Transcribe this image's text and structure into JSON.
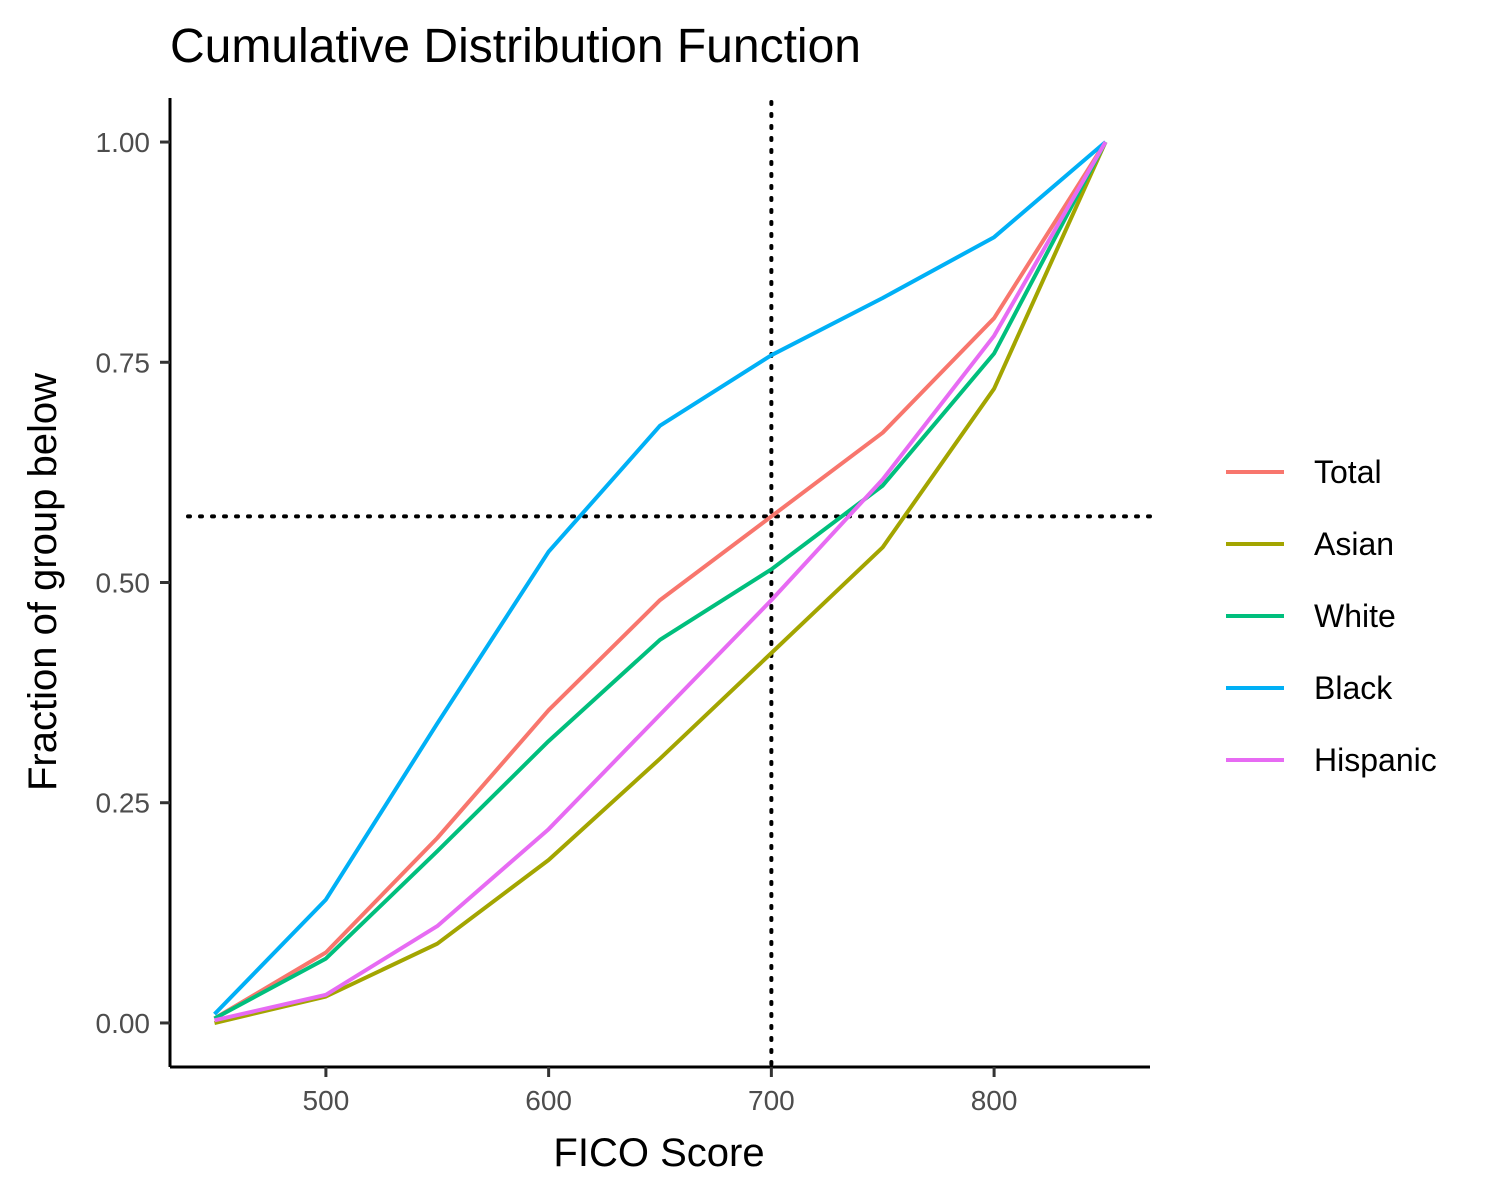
{
  "chart_data": {
    "type": "line",
    "title": "Cumulative Distribution Function",
    "xlabel": "FICO Score",
    "ylabel": "Fraction of group below",
    "x": [
      450,
      500,
      550,
      600,
      650,
      700,
      750,
      800,
      850
    ],
    "xlim": [
      430,
      870
    ],
    "ylim": [
      -0.05,
      1.05
    ],
    "xticks": [
      500,
      600,
      700,
      800
    ],
    "xtick_labels": [
      "500",
      "600",
      "700",
      "800"
    ],
    "yticks": [
      0,
      0.25,
      0.5,
      0.75,
      1.0
    ],
    "ytick_labels": [
      "0.00",
      "0.25",
      "0.50",
      "0.75",
      "1.00"
    ],
    "grid": false,
    "legend_position": "right",
    "reference_lines": {
      "vertical_x": 700,
      "horizontal_y": 0.575,
      "style": "dotted"
    },
    "series": [
      {
        "name": "Total",
        "color": "#F8766D",
        "values": [
          0.005,
          0.08,
          0.21,
          0.355,
          0.48,
          0.575,
          0.67,
          0.8,
          1.0
        ]
      },
      {
        "name": "Asian",
        "color": "#A3A500",
        "values": [
          0.0,
          0.03,
          0.09,
          0.185,
          0.3,
          0.42,
          0.54,
          0.72,
          1.0
        ]
      },
      {
        "name": "White",
        "color": "#00BF7D",
        "values": [
          0.005,
          0.073,
          0.195,
          0.32,
          0.435,
          0.515,
          0.61,
          0.76,
          1.0
        ]
      },
      {
        "name": "Black",
        "color": "#00B0F6",
        "values": [
          0.01,
          0.14,
          0.34,
          0.535,
          0.678,
          0.758,
          0.823,
          0.892,
          1.0
        ]
      },
      {
        "name": "Hispanic",
        "color": "#E76BF3",
        "values": [
          0.003,
          0.032,
          0.11,
          0.22,
          0.35,
          0.48,
          0.617,
          0.78,
          1.0
        ]
      }
    ]
  }
}
